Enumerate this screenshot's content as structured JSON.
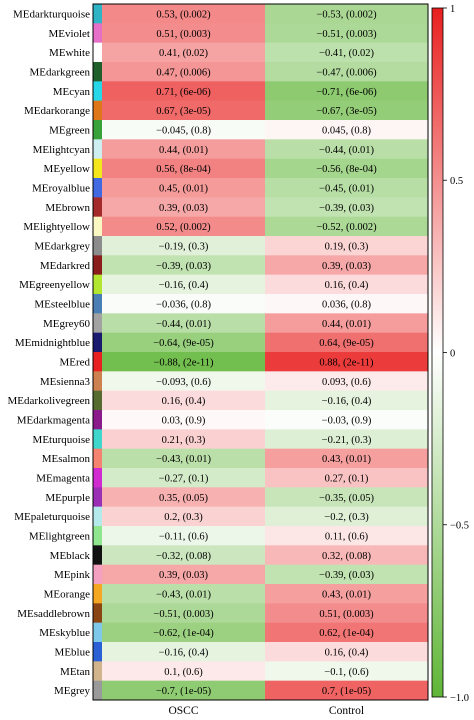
{
  "chart_data": {
    "type": "heatmap",
    "title": "",
    "columns": [
      "OSCC",
      "Control"
    ],
    "color_scale": {
      "min": -1.0,
      "max": 1.0,
      "low": "#5fb536",
      "mid": "#ffffff",
      "high": "#e8201f",
      "ticks": [
        1,
        0.5,
        0,
        -0.5,
        -1.0
      ],
      "tick_labels": [
        "1",
        "0.5",
        "0",
        "−0.5",
        "−1.0"
      ]
    },
    "rows": [
      {
        "module": "MEdarkturquoise",
        "color": "#2eb4c4",
        "values": [
          0.53,
          -0.53
        ],
        "labels": [
          "0.53, (0.002)",
          "−0.53, (0.002)"
        ]
      },
      {
        "module": "MEviolet",
        "color": "#e66fc8",
        "values": [
          0.51,
          -0.51
        ],
        "labels": [
          "0.51, (0.003)",
          "−0.51, (0.003)"
        ]
      },
      {
        "module": "MEwhite",
        "color": "#ffffff",
        "values": [
          0.41,
          -0.41
        ],
        "labels": [
          "0.41, (0.02)",
          "−0.41, (0.02)"
        ]
      },
      {
        "module": "MEdarkgreen",
        "color": "#1e5f2c",
        "values": [
          0.47,
          -0.47
        ],
        "labels": [
          "0.47, (0.006)",
          "−0.47, (0.006)"
        ]
      },
      {
        "module": "MEcyan",
        "color": "#26d7e8",
        "values": [
          0.71,
          -0.71
        ],
        "labels": [
          "0.71, (6e-06)",
          "−0.71, (6e-06)"
        ]
      },
      {
        "module": "MEdarkorange",
        "color": "#e0761a",
        "values": [
          0.67,
          -0.67
        ],
        "labels": [
          "0.67, (3e-05)",
          "−0.67, (3e-05)"
        ]
      },
      {
        "module": "MEgreen",
        "color": "#3aa23a",
        "values": [
          -0.045,
          0.045
        ],
        "labels": [
          "−0.045, (0.8)",
          "0.045, (0.8)"
        ]
      },
      {
        "module": "MElightcyan",
        "color": "#cdeff2",
        "values": [
          0.44,
          -0.44
        ],
        "labels": [
          "0.44, (0.01)",
          "−0.44, (0.01)"
        ]
      },
      {
        "module": "MEyellow",
        "color": "#f3e61b",
        "values": [
          0.56,
          -0.56
        ],
        "labels": [
          "0.56, (8e-04)",
          "−0.56, (8e-04)"
        ]
      },
      {
        "module": "MEroyalblue",
        "color": "#4169e1",
        "values": [
          0.45,
          -0.45
        ],
        "labels": [
          "0.45, (0.01)",
          "−0.45, (0.01)"
        ]
      },
      {
        "module": "MEbrown",
        "color": "#a52a2a",
        "values": [
          0.39,
          -0.39
        ],
        "labels": [
          "0.39, (0.03)",
          "−0.39, (0.03)"
        ]
      },
      {
        "module": "MElightyellow",
        "color": "#fbf7c2",
        "values": [
          0.52,
          -0.52
        ],
        "labels": [
          "0.52, (0.002)",
          "−0.52, (0.002)"
        ]
      },
      {
        "module": "MEdarkgrey",
        "color": "#8c8c8c",
        "values": [
          -0.19,
          0.19
        ],
        "labels": [
          "−0.19, (0.3)",
          "0.19, (0.3)"
        ]
      },
      {
        "module": "MEdarkred",
        "color": "#8b1c1c",
        "values": [
          -0.39,
          0.39
        ],
        "labels": [
          "−0.39, (0.03)",
          "0.39, (0.03)"
        ]
      },
      {
        "module": "MEgreenyellow",
        "color": "#b3e62e",
        "values": [
          -0.16,
          0.16
        ],
        "labels": [
          "−0.16, (0.4)",
          "0.16, (0.4)"
        ]
      },
      {
        "module": "MEsteelblue",
        "color": "#4a7fb5",
        "values": [
          -0.036,
          0.036
        ],
        "labels": [
          "−0.036, (0.8)",
          "0.036, (0.8)"
        ]
      },
      {
        "module": "MEgrey60",
        "color": "#a2a2a2",
        "values": [
          -0.44,
          0.44
        ],
        "labels": [
          "−0.44, (0.01)",
          "0.44, (0.01)"
        ]
      },
      {
        "module": "MEmidnightblue",
        "color": "#191970",
        "values": [
          -0.64,
          0.64
        ],
        "labels": [
          "−0.64, (9e-05)",
          "0.64, (9e-05)"
        ]
      },
      {
        "module": "MEred",
        "color": "#e8201f",
        "values": [
          -0.88,
          0.88
        ],
        "labels": [
          "−0.88, (2e-11)",
          "0.88, (2e-11)"
        ]
      },
      {
        "module": "MEsienna3",
        "color": "#cd8050",
        "values": [
          -0.093,
          0.093
        ],
        "labels": [
          "−0.093, (0.6)",
          "0.093, (0.6)"
        ]
      },
      {
        "module": "MEdarkolivegreen",
        "color": "#556b2f",
        "values": [
          0.16,
          -0.16
        ],
        "labels": [
          "0.16, (0.4)",
          "−0.16, (0.4)"
        ]
      },
      {
        "module": "MEdarkmagenta",
        "color": "#8b1a8b",
        "values": [
          0.03,
          -0.03
        ],
        "labels": [
          "0.03, (0.9)",
          "−0.03, (0.9)"
        ]
      },
      {
        "module": "MEturquoise",
        "color": "#3fd6cc",
        "values": [
          0.21,
          -0.21
        ],
        "labels": [
          "0.21, (0.3)",
          "−0.21, (0.3)"
        ]
      },
      {
        "module": "MEsalmon",
        "color": "#f5836f",
        "values": [
          -0.43,
          0.43
        ],
        "labels": [
          "−0.43, (0.01)",
          "0.43, (0.01)"
        ]
      },
      {
        "module": "MEmagenta",
        "color": "#d12ad1",
        "values": [
          -0.27,
          0.27
        ],
        "labels": [
          "−0.27, (0.1)",
          "0.27, (0.1)"
        ]
      },
      {
        "module": "MEpurple",
        "color": "#9a2fb5",
        "values": [
          0.35,
          -0.35
        ],
        "labels": [
          "0.35, (0.05)",
          "−0.35, (0.05)"
        ]
      },
      {
        "module": "MEpaleturquoise",
        "color": "#b5eaea",
        "values": [
          0.2,
          -0.2
        ],
        "labels": [
          "0.2, (0.3)",
          "−0.2, (0.3)"
        ]
      },
      {
        "module": "MElightgreen",
        "color": "#8fe68f",
        "values": [
          -0.11,
          0.11
        ],
        "labels": [
          "−0.11, (0.6)",
          "0.11, (0.6)"
        ]
      },
      {
        "module": "MEblack",
        "color": "#111111",
        "values": [
          -0.32,
          0.32
        ],
        "labels": [
          "−0.32, (0.08)",
          "0.32, (0.08)"
        ]
      },
      {
        "module": "MEpink",
        "color": "#f4a0c0",
        "values": [
          0.39,
          -0.39
        ],
        "labels": [
          "0.39, (0.03)",
          "−0.39, (0.03)"
        ]
      },
      {
        "module": "MEorange",
        "color": "#f5a623",
        "values": [
          -0.43,
          0.43
        ],
        "labels": [
          "−0.43, (0.01)",
          "0.43, (0.01)"
        ]
      },
      {
        "module": "MEsaddlebrown",
        "color": "#8b4513",
        "values": [
          -0.51,
          0.51
        ],
        "labels": [
          "−0.51, (0.003)",
          "0.51, (0.003)"
        ]
      },
      {
        "module": "MEskyblue",
        "color": "#7ec8ea",
        "values": [
          -0.62,
          0.62
        ],
        "labels": [
          "−0.62, (1e-04)",
          "0.62, (1e-04)"
        ]
      },
      {
        "module": "MEblue",
        "color": "#2a5fd6",
        "values": [
          -0.16,
          0.16
        ],
        "labels": [
          "−0.16, (0.4)",
          "0.16, (0.4)"
        ]
      },
      {
        "module": "MEtan",
        "color": "#d2b48c",
        "values": [
          0.1,
          -0.1
        ],
        "labels": [
          "0.1, (0.6)",
          "−0.1, (0.6)"
        ]
      },
      {
        "module": "MEgrey",
        "color": "#9a9a9a",
        "values": [
          -0.7,
          0.7
        ],
        "labels": [
          "−0.7, (1e-05)",
          "0.7, (1e-05)"
        ]
      }
    ]
  }
}
